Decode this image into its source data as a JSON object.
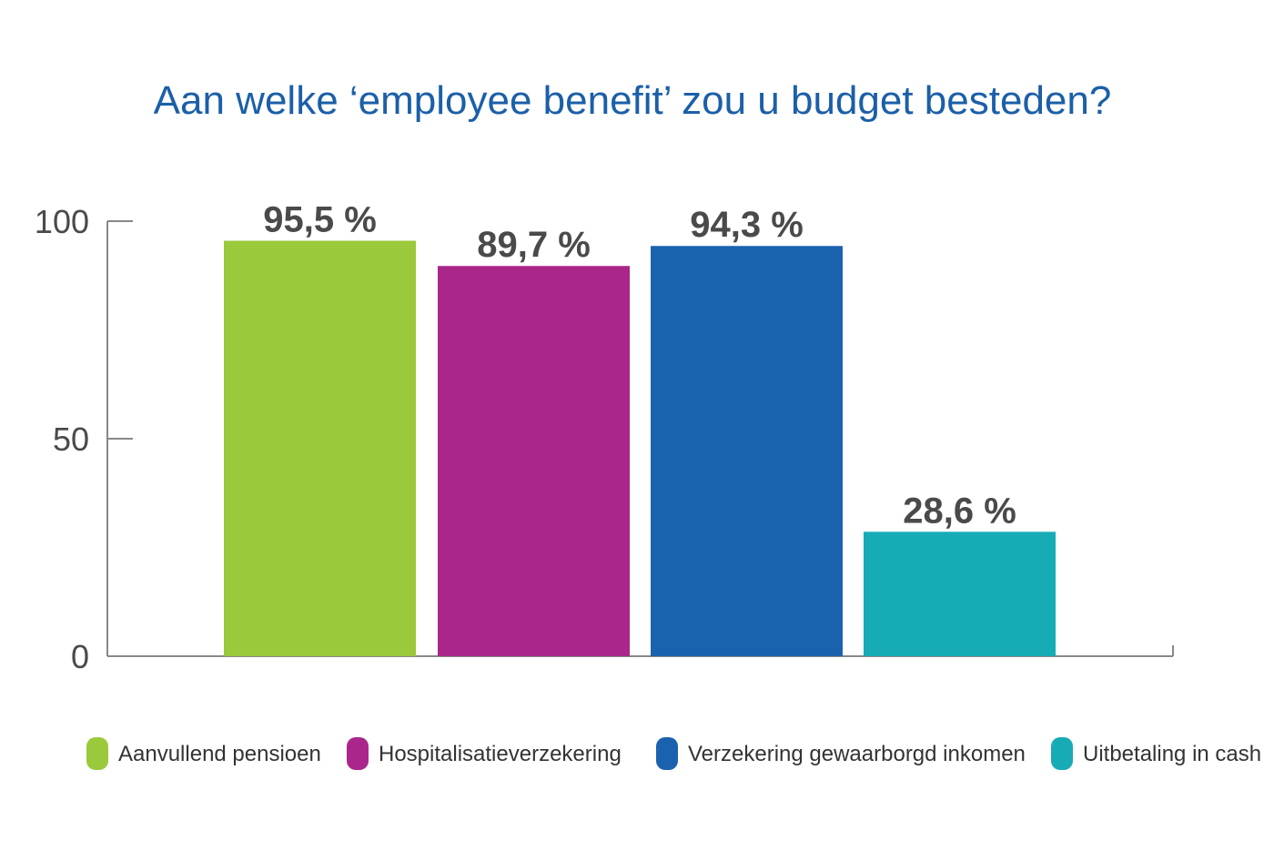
{
  "chart_data": {
    "type": "bar",
    "title": "Aan welke ‘employee benefit’ zou u budget besteden?",
    "categories": [
      "Aanvullend pensioen",
      "Hospitalisatieverzekering",
      "Verzekering gewaarborgd inkomen",
      "Uitbetaling in cash"
    ],
    "values": [
      95.5,
      89.7,
      94.3,
      28.6
    ],
    "data_labels": [
      "95,5 %",
      "89,7 %",
      "94,3 %",
      "28,6 %"
    ],
    "colors": [
      "#9bc93c",
      "#aa268b",
      "#1b62ae",
      "#17abb6"
    ],
    "yticks": [
      0,
      50,
      100
    ],
    "ylim": [
      0,
      100
    ],
    "xlabel": "",
    "ylabel": "",
    "grid": false,
    "legend_placement": "bottom"
  }
}
